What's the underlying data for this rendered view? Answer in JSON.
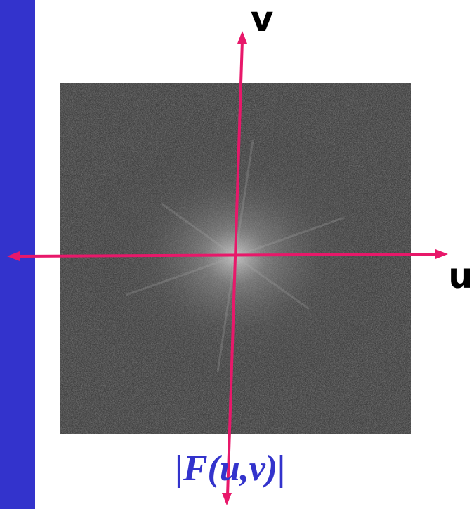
{
  "labels": {
    "v_axis": "v",
    "u_axis": "u",
    "caption": "|F(u,v)|"
  }
}
